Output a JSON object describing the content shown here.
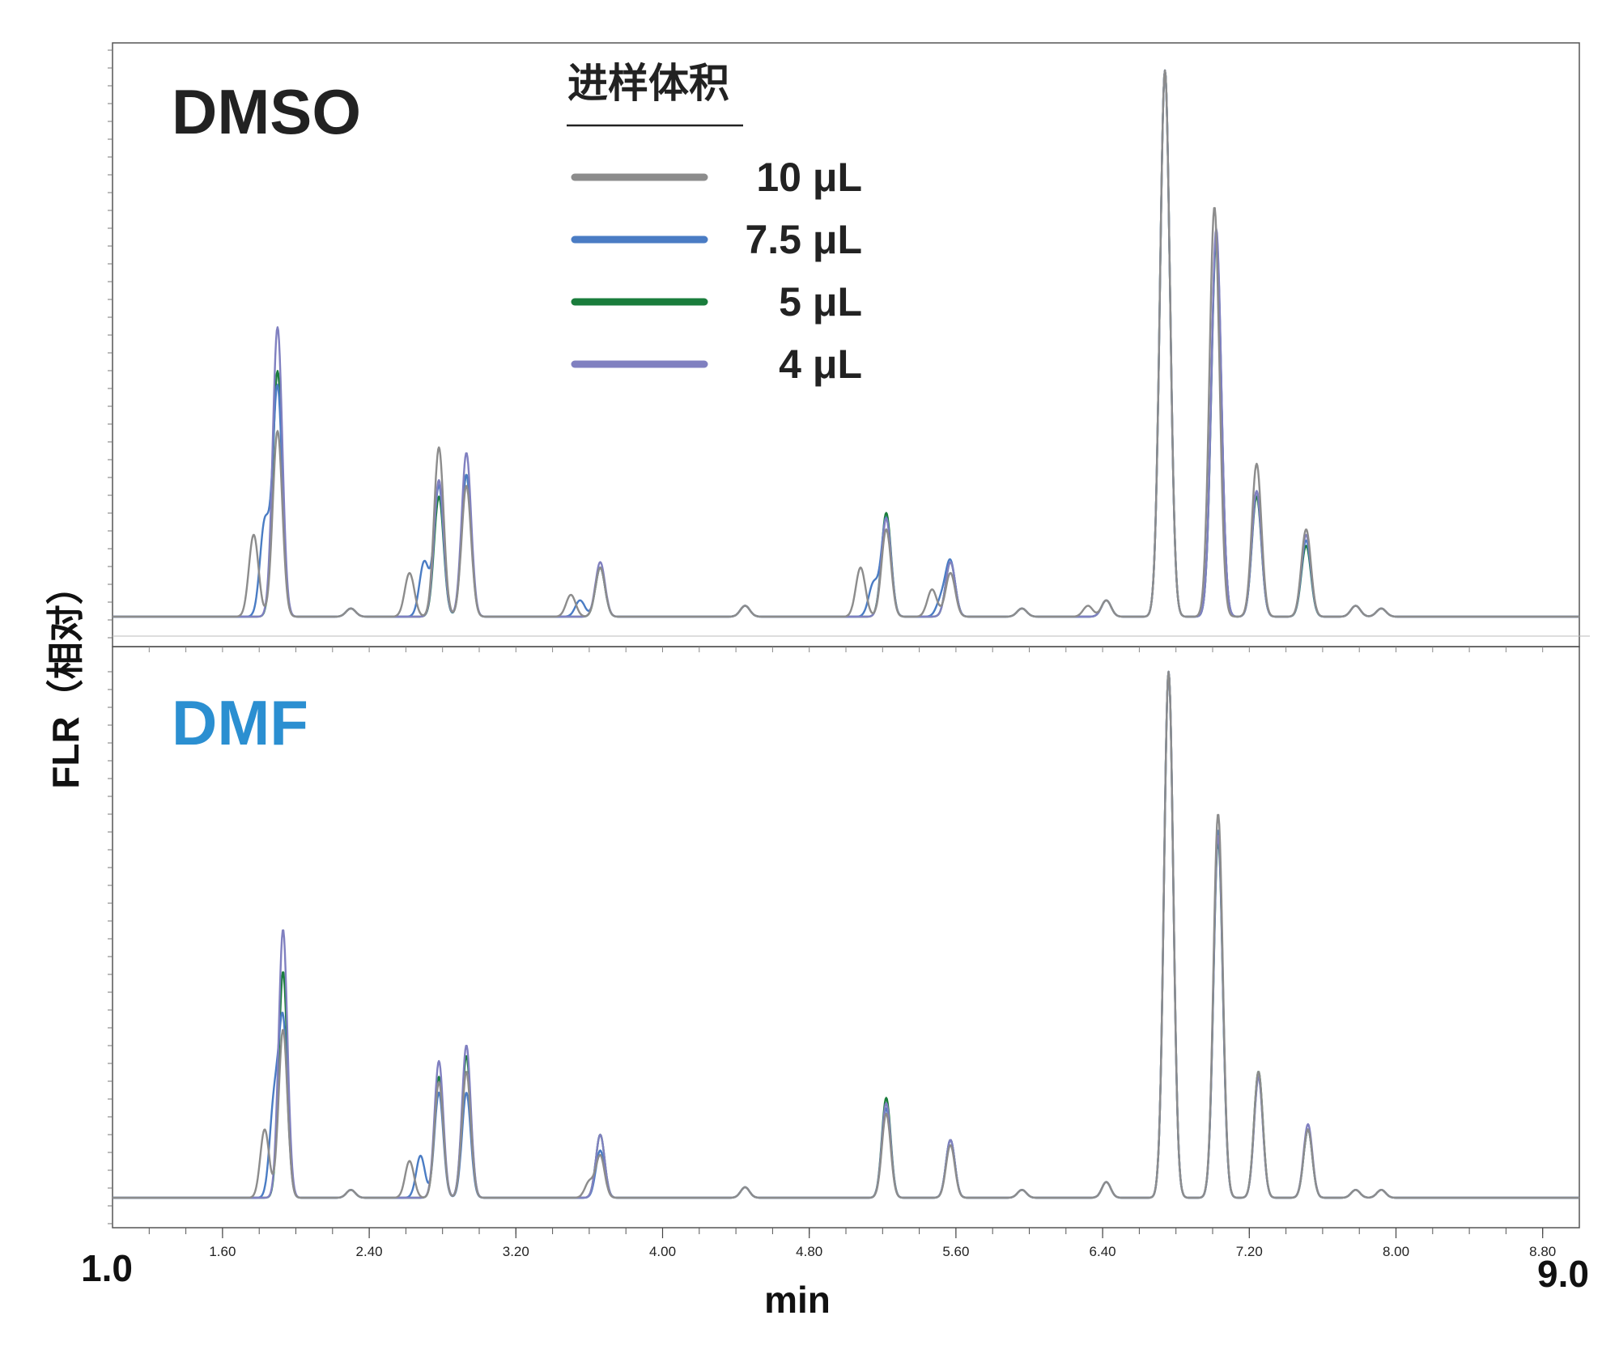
{
  "chart_data": {
    "type": "line",
    "xlabel": "min",
    "ylabel": "FLR（相对）",
    "xlim": [
      1.0,
      9.0
    ],
    "x_range_labels": [
      "1.0",
      "9.0"
    ],
    "x_ticks": [
      "1.60",
      "2.40",
      "3.20",
      "4.00",
      "4.80",
      "5.60",
      "6.40",
      "7.20",
      "8.00",
      "8.80"
    ],
    "legend": {
      "title": "进样体积",
      "placement": "top-center",
      "entries": [
        {
          "label": "10 μL",
          "color": "#8c8c8c"
        },
        {
          "label": "7.5 μL",
          "color": "#4a7cc4"
        },
        {
          "label": "5 μL",
          "color": "#1a7d3c"
        },
        {
          "label": "4 μL",
          "color": "#8080c0"
        }
      ]
    },
    "panels": [
      {
        "title": "DMSO",
        "title_color": "#222222",
        "ylim": [
          0,
          100
        ],
        "series": [
          {
            "name": "10 μL",
            "color": "#8c8c8c",
            "peaks": [
              [
                1.77,
                15
              ],
              [
                1.9,
                34
              ],
              [
                2.3,
                1.5
              ],
              [
                2.62,
                8
              ],
              [
                2.78,
                31
              ],
              [
                2.93,
                24
              ],
              [
                3.5,
                4
              ],
              [
                3.66,
                9
              ],
              [
                4.45,
                2
              ],
              [
                5.08,
                9
              ],
              [
                5.22,
                16
              ],
              [
                5.47,
                5
              ],
              [
                5.57,
                8
              ],
              [
                5.96,
                1.5
              ],
              [
                6.32,
                2
              ],
              [
                6.42,
                3
              ],
              [
                6.74,
                100
              ],
              [
                7.01,
                75
              ],
              [
                7.24,
                28
              ],
              [
                7.51,
                16
              ],
              [
                7.78,
                2
              ],
              [
                7.92,
                1.5
              ]
            ]
          },
          {
            "name": "7.5 μL",
            "color": "#4a7cc4",
            "peaks": [
              [
                1.83,
                17
              ],
              [
                1.9,
                42
              ],
              [
                2.3,
                1.5
              ],
              [
                2.7,
                10
              ],
              [
                2.78,
                24
              ],
              [
                2.93,
                26
              ],
              [
                3.55,
                3
              ],
              [
                3.66,
                9
              ],
              [
                4.45,
                2
              ],
              [
                5.15,
                6
              ],
              [
                5.22,
                18
              ],
              [
                5.52,
                3
              ],
              [
                5.57,
                10
              ],
              [
                5.96,
                1.5
              ],
              [
                6.42,
                3
              ],
              [
                6.74,
                100
              ],
              [
                7.02,
                70
              ],
              [
                7.24,
                23
              ],
              [
                7.51,
                14
              ],
              [
                7.78,
                2
              ],
              [
                7.92,
                1.5
              ]
            ]
          },
          {
            "name": "5 μL",
            "color": "#1a7d3c",
            "peaks": [
              [
                1.9,
                45
              ],
              [
                2.3,
                1.5
              ],
              [
                2.78,
                22
              ],
              [
                2.93,
                26
              ],
              [
                3.66,
                9
              ],
              [
                4.45,
                2
              ],
              [
                5.22,
                19
              ],
              [
                5.57,
                10
              ],
              [
                5.96,
                1.5
              ],
              [
                6.42,
                3
              ],
              [
                6.74,
                100
              ],
              [
                7.02,
                69
              ],
              [
                7.24,
                22
              ],
              [
                7.51,
                13
              ],
              [
                7.78,
                2
              ],
              [
                7.92,
                1.5
              ]
            ]
          },
          {
            "name": "4 μL",
            "color": "#8080c0",
            "peaks": [
              [
                1.9,
                53
              ],
              [
                2.3,
                1.5
              ],
              [
                2.78,
                25
              ],
              [
                2.93,
                30
              ],
              [
                3.66,
                10
              ],
              [
                4.45,
                2
              ],
              [
                5.22,
                18
              ],
              [
                5.57,
                10
              ],
              [
                5.96,
                1.5
              ],
              [
                6.42,
                3
              ],
              [
                6.74,
                100
              ],
              [
                7.02,
                71
              ],
              [
                7.24,
                23
              ],
              [
                7.51,
                15
              ],
              [
                7.78,
                2
              ],
              [
                7.92,
                1.5
              ]
            ]
          }
        ]
      },
      {
        "title": "DMF",
        "title_color": "#2b8fd1",
        "ylim": [
          0,
          100
        ],
        "series": [
          {
            "name": "10 μL",
            "color": "#8c8c8c",
            "peaks": [
              [
                1.83,
                13
              ],
              [
                1.93,
                32
              ],
              [
                2.3,
                1.5
              ],
              [
                2.62,
                7
              ],
              [
                2.78,
                22
              ],
              [
                2.93,
                24
              ],
              [
                3.6,
                3
              ],
              [
                3.66,
                8
              ],
              [
                4.45,
                2
              ],
              [
                5.22,
                16
              ],
              [
                5.57,
                10
              ],
              [
                5.96,
                1.5
              ],
              [
                6.42,
                3
              ],
              [
                6.76,
                100
              ],
              [
                7.03,
                73
              ],
              [
                7.25,
                24
              ],
              [
                7.52,
                13
              ],
              [
                7.78,
                1.5
              ],
              [
                7.92,
                1.5
              ]
            ]
          },
          {
            "name": "7.5 μL",
            "color": "#4a7cc4",
            "peaks": [
              [
                1.88,
                17
              ],
              [
                1.93,
                33
              ],
              [
                2.3,
                1.5
              ],
              [
                2.68,
                8
              ],
              [
                2.78,
                20
              ],
              [
                2.93,
                20
              ],
              [
                3.66,
                9
              ],
              [
                4.45,
                2
              ],
              [
                5.22,
                17
              ],
              [
                5.57,
                11
              ],
              [
                5.96,
                1.5
              ],
              [
                6.42,
                3
              ],
              [
                6.76,
                100
              ],
              [
                7.03,
                70
              ],
              [
                7.25,
                23
              ],
              [
                7.52,
                13
              ],
              [
                7.78,
                1.5
              ],
              [
                7.92,
                1.5
              ]
            ]
          },
          {
            "name": "5 μL",
            "color": "#1a7d3c",
            "peaks": [
              [
                1.93,
                43
              ],
              [
                2.3,
                1.5
              ],
              [
                2.78,
                23
              ],
              [
                2.93,
                27
              ],
              [
                3.66,
                12
              ],
              [
                4.45,
                2
              ],
              [
                5.22,
                19
              ],
              [
                5.57,
                11
              ],
              [
                5.96,
                1.5
              ],
              [
                6.42,
                3
              ],
              [
                6.76,
                100
              ],
              [
                7.03,
                68
              ],
              [
                7.25,
                24
              ],
              [
                7.52,
                13
              ],
              [
                7.78,
                1.5
              ],
              [
                7.92,
                1.5
              ]
            ]
          },
          {
            "name": "4 μL",
            "color": "#8080c0",
            "peaks": [
              [
                1.93,
                51
              ],
              [
                2.3,
                1.5
              ],
              [
                2.78,
                26
              ],
              [
                2.93,
                29
              ],
              [
                3.66,
                12
              ],
              [
                4.45,
                2
              ],
              [
                5.22,
                18
              ],
              [
                5.57,
                11
              ],
              [
                5.96,
                1.5
              ],
              [
                6.42,
                3
              ],
              [
                6.76,
                100
              ],
              [
                7.03,
                69
              ],
              [
                7.25,
                23
              ],
              [
                7.52,
                14
              ],
              [
                7.78,
                1.5
              ],
              [
                7.92,
                1.5
              ]
            ]
          }
        ]
      }
    ]
  }
}
